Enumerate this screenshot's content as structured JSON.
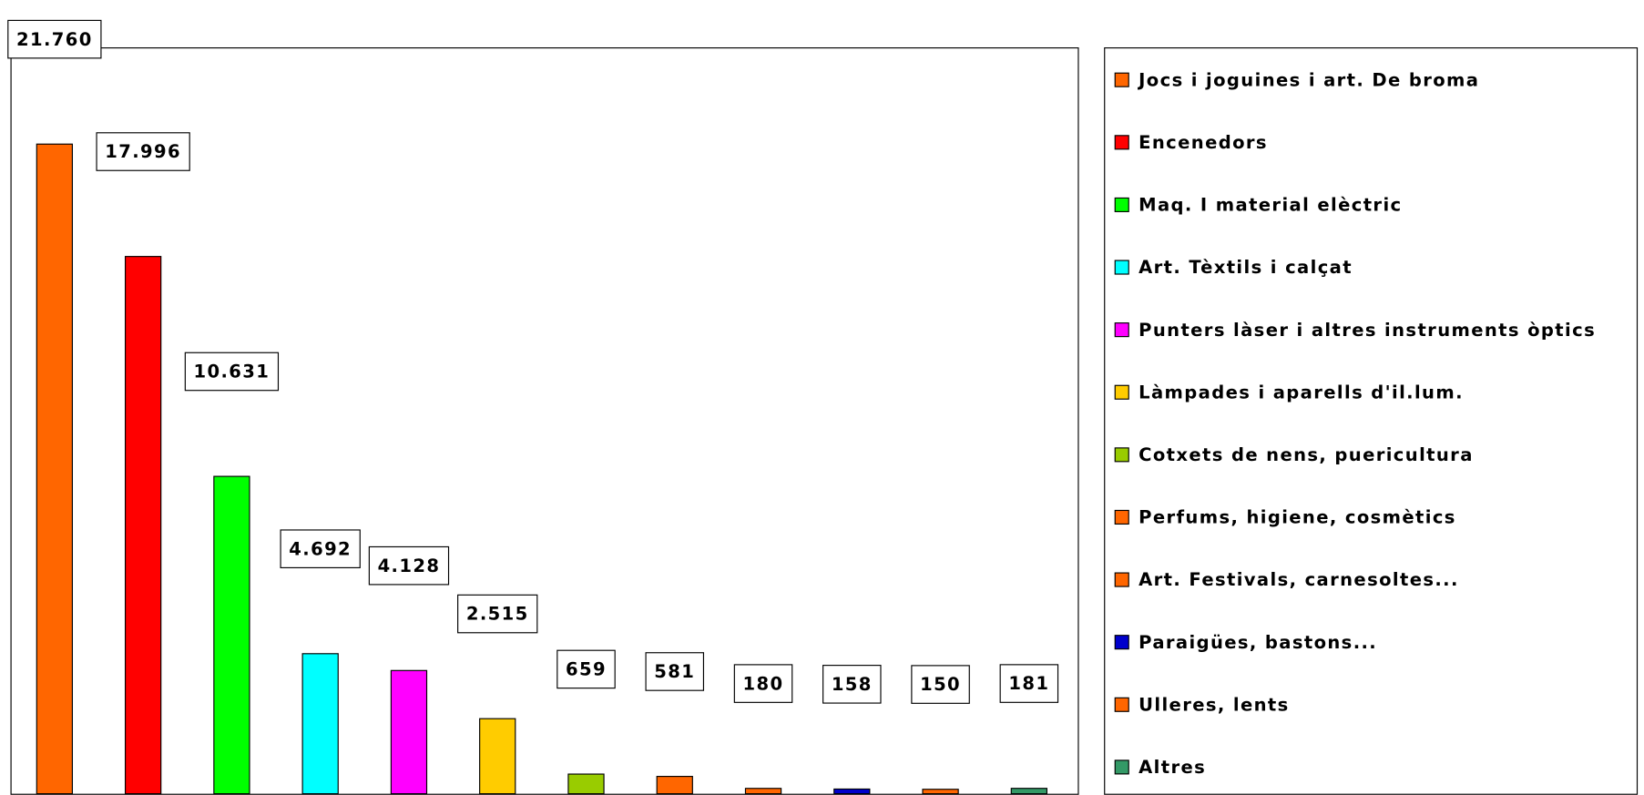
{
  "chart_data": {
    "type": "bar",
    "categories": [
      "Jocs i joguines i art. De broma",
      "Encenedors",
      "Maq. I material elèctric",
      "Art. Tèxtils i calçat",
      "Punters làser i altres instruments òptics",
      "Làmpades i aparells d'il.lum.",
      "Cotxets de nens, puericultura",
      "Perfums, higiene, cosmètics",
      "Art. Festivals, carnesoltes...",
      "Paraigües, bastons...",
      "Ulleres, lents",
      "Altres"
    ],
    "values": [
      21760,
      17996,
      10631,
      4692,
      4128,
      2515,
      659,
      581,
      180,
      158,
      150,
      181
    ],
    "value_labels": [
      "21.760",
      "17.996",
      "10.631",
      "4.692",
      "4.128",
      "2.515",
      "659",
      "581",
      "180",
      "158",
      "150",
      "181"
    ],
    "colors": [
      "#ff6600",
      "#ff0000",
      "#00ff00",
      "#00ffff",
      "#ff00ff",
      "#ffcc00",
      "#99cc00",
      "#ff6600",
      "#ff6600",
      "#0000cc",
      "#ff6600",
      "#339966"
    ],
    "ylim": [
      0,
      25000
    ],
    "legend": "right"
  }
}
